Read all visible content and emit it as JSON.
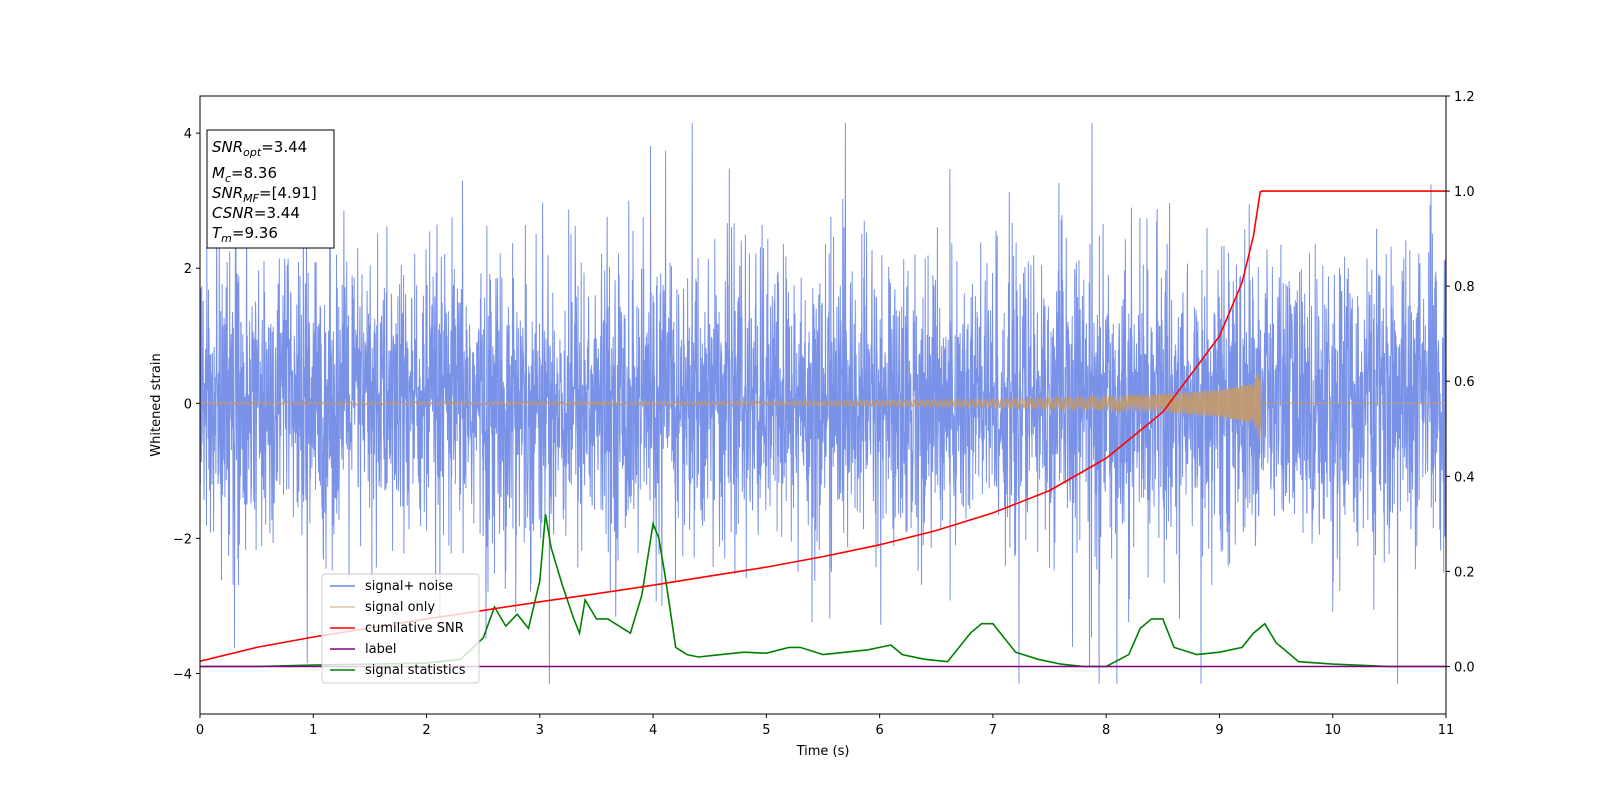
{
  "chart_data": {
    "type": "line",
    "xlabel": "Time (s)",
    "ylabel": "Whitened strain",
    "xlim": [
      0,
      11
    ],
    "ylim": [
      -4.6,
      4.55
    ],
    "y2lim": [
      -0.1,
      1.2
    ],
    "x_ticks": [
      0,
      1,
      2,
      3,
      4,
      5,
      6,
      7,
      8,
      9,
      10,
      11
    ],
    "y_ticks": [
      -4,
      -2,
      0,
      2,
      4
    ],
    "y2_ticks": [
      0.0,
      0.2,
      0.4,
      0.6,
      0.8,
      1.0,
      1.2
    ],
    "y_tick_labels": [
      "−4",
      "−2",
      "0",
      "2",
      "4"
    ],
    "y2_tick_labels": [
      "0.0",
      "0.2",
      "0.4",
      "0.6",
      "0.8",
      "1.0",
      "1.2"
    ],
    "grid": false,
    "legend_position": "lower-left",
    "info_box": {
      "snr_opt": {
        "name": "SNR",
        "sub": "opt",
        "value": "=3.44"
      },
      "mc": {
        "name": "M",
        "sub": "c",
        "value": "=8.36"
      },
      "snr_mf": {
        "name": "SNR",
        "sub": "MF",
        "value": "=[4.91]"
      },
      "csnr": {
        "name": "CSNR",
        "sub": "",
        "value": "=3.44"
      },
      "tm": {
        "name": "T",
        "sub": "m",
        "value": "=9.36"
      }
    },
    "series": [
      {
        "name": "signal+ noise",
        "color": "#6a86e6",
        "axis": "left",
        "kind": "noise",
        "envelope": {
          "mean": 0.0,
          "typical_amplitude": 2.0,
          "peak_max": 4.15,
          "peak_min": -4.15
        }
      },
      {
        "name": "signal only",
        "color": "#c49a6c",
        "axis": "left",
        "kind": "chirp",
        "merger_time": 9.36,
        "peak_amplitude": 0.6,
        "amplitude_points": [
          [
            0,
            0.02
          ],
          [
            5.0,
            0.03
          ],
          [
            7.0,
            0.06
          ],
          [
            8.0,
            0.1
          ],
          [
            8.5,
            0.13
          ],
          [
            9.0,
            0.2
          ],
          [
            9.3,
            0.3
          ],
          [
            9.36,
            0.6
          ]
        ]
      },
      {
        "name": "cumilative SNR",
        "color": "#ff0000",
        "axis": "right",
        "x": [
          0,
          0.5,
          1,
          1.5,
          2,
          2.5,
          3,
          3.5,
          4,
          4.5,
          5,
          5.5,
          6,
          6.5,
          7,
          7.5,
          8,
          8.5,
          9,
          9.2,
          9.3,
          9.36,
          9.37,
          11
        ],
        "values": [
          0.011,
          0.04,
          0.062,
          0.081,
          0.1,
          0.118,
          0.136,
          0.153,
          0.171,
          0.19,
          0.209,
          0.231,
          0.256,
          0.286,
          0.323,
          0.37,
          0.438,
          0.535,
          0.695,
          0.808,
          0.905,
          0.998,
          1.0,
          1.0
        ]
      },
      {
        "name": "label",
        "color": "#800080",
        "axis": "right",
        "x": [
          0,
          11
        ],
        "values": [
          0.0,
          0.0
        ]
      },
      {
        "name": "signal statistics",
        "color": "#008000",
        "axis": "right",
        "x": [
          0,
          0.5,
          1.0,
          1.5,
          2.0,
          2.3,
          2.5,
          2.6,
          2.7,
          2.8,
          2.9,
          3.0,
          3.05,
          3.1,
          3.2,
          3.3,
          3.35,
          3.4,
          3.5,
          3.6,
          3.7,
          3.8,
          3.9,
          4.0,
          4.05,
          4.1,
          4.15,
          4.2,
          4.3,
          4.4,
          4.6,
          4.8,
          5.0,
          5.2,
          5.3,
          5.5,
          5.7,
          5.9,
          6.0,
          6.1,
          6.2,
          6.4,
          6.6,
          6.8,
          6.9,
          7.0,
          7.2,
          7.4,
          7.6,
          7.8,
          8.0,
          8.2,
          8.3,
          8.4,
          8.5,
          8.6,
          8.8,
          9.0,
          9.2,
          9.3,
          9.4,
          9.5,
          9.7,
          10.0,
          10.5,
          11.0
        ],
        "values": [
          0.0,
          0.0,
          0.003,
          0.005,
          0.007,
          0.015,
          0.06,
          0.125,
          0.085,
          0.11,
          0.08,
          0.18,
          0.32,
          0.25,
          0.17,
          0.1,
          0.07,
          0.14,
          0.1,
          0.1,
          0.085,
          0.07,
          0.15,
          0.3,
          0.27,
          0.2,
          0.12,
          0.04,
          0.025,
          0.02,
          0.025,
          0.03,
          0.028,
          0.04,
          0.04,
          0.025,
          0.03,
          0.035,
          0.04,
          0.045,
          0.025,
          0.015,
          0.01,
          0.07,
          0.09,
          0.09,
          0.03,
          0.015,
          0.005,
          0.0,
          0.0,
          0.025,
          0.08,
          0.1,
          0.1,
          0.04,
          0.025,
          0.03,
          0.04,
          0.07,
          0.09,
          0.05,
          0.01,
          0.005,
          0.0,
          0.0
        ]
      }
    ],
    "legend": [
      "signal+ noise",
      "signal only",
      "cumilative SNR",
      "label",
      "signal statistics"
    ]
  }
}
